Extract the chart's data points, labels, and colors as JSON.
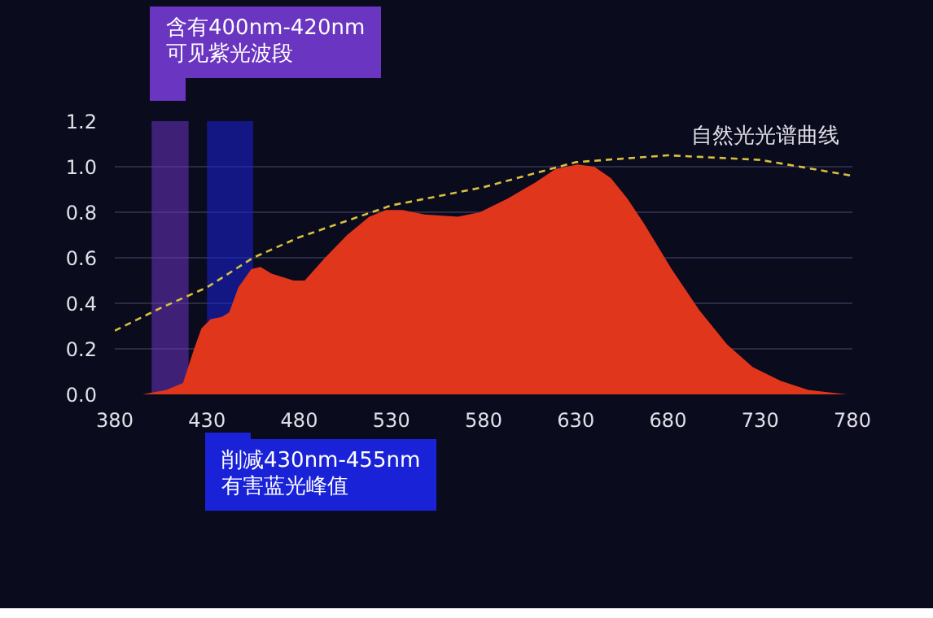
{
  "chart_data": {
    "type": "area",
    "x": [
      380,
      395,
      408,
      417,
      423,
      427,
      432,
      438,
      442,
      447,
      454,
      459,
      465,
      477,
      483,
      494,
      506,
      518,
      527,
      536,
      548,
      566,
      578,
      593,
      608,
      619,
      631,
      640,
      649,
      658,
      667,
      682,
      697,
      712,
      726,
      741,
      756,
      777,
      780
    ],
    "series": [
      {
        "color": "#e0361c",
        "values": [
          0,
          0,
          0.02,
          0.05,
          0.2,
          0.29,
          0.33,
          0.34,
          0.36,
          0.47,
          0.55,
          0.56,
          0.53,
          0.5,
          0.5,
          0.6,
          0.7,
          0.78,
          0.81,
          0.81,
          0.79,
          0.78,
          0.8,
          0.86,
          0.93,
          0.99,
          1.01,
          1.0,
          0.95,
          0.86,
          0.75,
          0.55,
          0.37,
          0.22,
          0.12,
          0.06,
          0.02,
          0.0,
          0.0
        ]
      },
      {
        "type": "line",
        "name": "自然光光谱曲线",
        "color": "#d8c040",
        "line_style": "dashed",
        "x": [
          380,
          405,
          430,
          455,
          480,
          530,
          580,
          630,
          680,
          730,
          780
        ],
        "values": [
          0.28,
          0.38,
          0.47,
          0.6,
          0.69,
          0.83,
          0.91,
          1.02,
          1.05,
          1.03,
          0.96
        ]
      }
    ],
    "xlim": [
      380,
      780
    ],
    "xticks": [
      380,
      430,
      480,
      530,
      580,
      630,
      680,
      730,
      780
    ],
    "ylim": [
      0,
      1.2
    ],
    "yticks": [
      {
        "value": 0,
        "label": "0.0"
      },
      0.2,
      0.4,
      0.6,
      0.8,
      {
        "value": 1,
        "label": "1.0"
      },
      1.2
    ],
    "grid": "y",
    "bands": [
      {
        "axis": "x",
        "from": 400,
        "to": 420,
        "label": "含有400nm-420nm\n可见紫光波段",
        "color": "#6a35c0"
      },
      {
        "axis": "x",
        "from": 430,
        "to": 455,
        "label": "削减430nm-455nm\n有害蓝光峰值",
        "color": "#1a22d8"
      }
    ]
  }
}
